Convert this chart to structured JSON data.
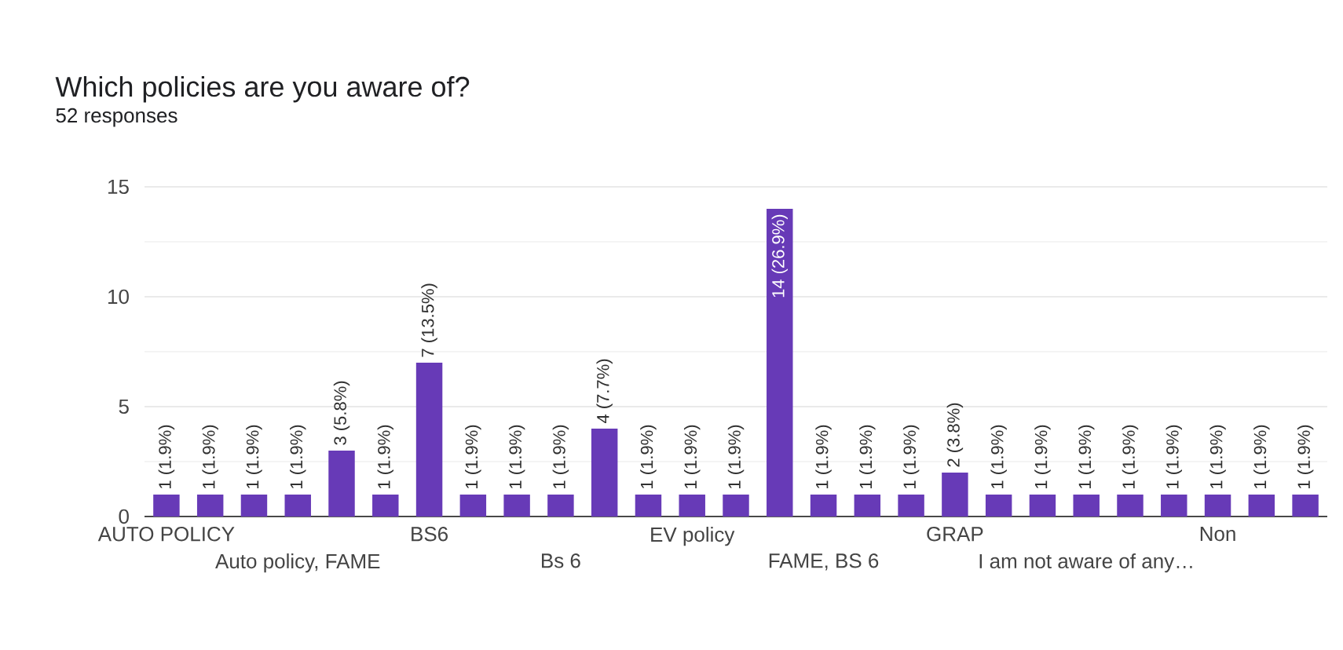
{
  "chart_data": {
    "type": "bar",
    "title": "Which policies are you aware of?",
    "subtitle": "52 responses",
    "categories": [
      "AUTO POLICY",
      null,
      null,
      "Auto policy, FAME",
      null,
      null,
      "BS6",
      null,
      null,
      "Bs 6",
      null,
      null,
      "EV policy",
      null,
      null,
      "FAME, BS 6",
      null,
      null,
      "GRAP",
      null,
      null,
      "I am not aware of any…",
      null,
      null,
      "Non",
      null,
      null
    ],
    "values": [
      1,
      1,
      1,
      1,
      3,
      1,
      7,
      1,
      1,
      1,
      4,
      1,
      1,
      1,
      14,
      1,
      1,
      1,
      2,
      1,
      1,
      1,
      1,
      1,
      1,
      1,
      1
    ],
    "value_labels": [
      "1 (1.9%)",
      "1 (1.9%)",
      "1 (1.9%)",
      "1 (1.9%)",
      "3 (5.8%)",
      "1 (1.9%)",
      "7 (13.5%)",
      "1 (1.9%)",
      "1 (1.9%)",
      "1 (1.9%)",
      "4 (7.7%)",
      "1 (1.9%)",
      "1 (1.9%)",
      "1 (1.9%)",
      "14 (26.9%)",
      "1 (1.9%)",
      "1 (1.9%)",
      "1 (1.9%)",
      "2 (3.8%)",
      "1 (1.9%)",
      "1 (1.9%)",
      "1 (1.9%)",
      "1 (1.9%)",
      "1 (1.9%)",
      "1 (1.9%)",
      "1 (1.9%)",
      "1 (1.9%)"
    ],
    "color": "#673ab7",
    "ylim": [
      0,
      15
    ],
    "yticks": [
      0,
      {
        "value": 2.5,
        "label": null
      },
      5,
      {
        "value": 7.5,
        "label": null
      },
      10,
      {
        "value": 12.5,
        "label": null
      },
      15
    ],
    "grid": "y"
  }
}
